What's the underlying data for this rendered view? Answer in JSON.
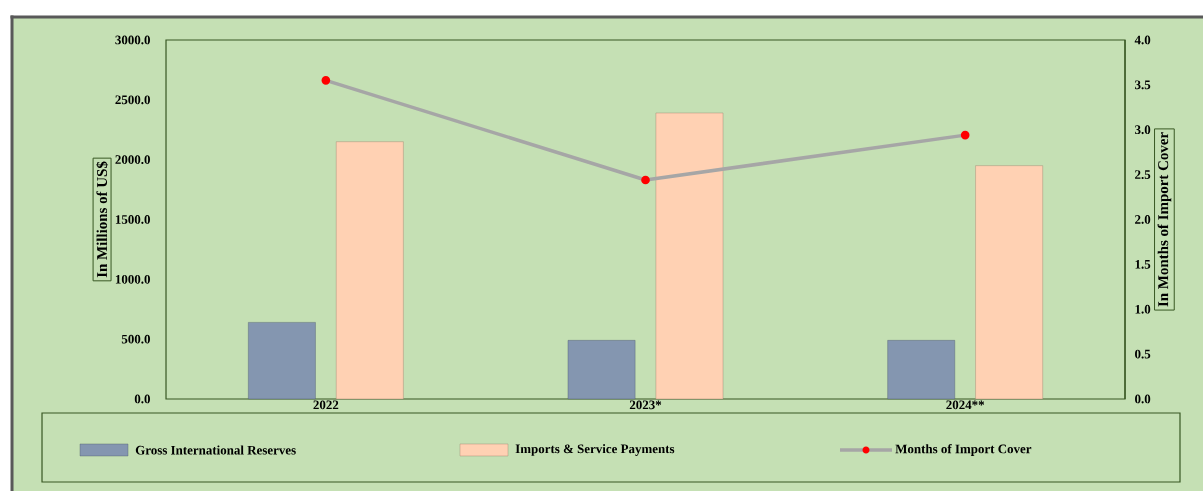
{
  "chart_data": {
    "type": "bar",
    "ylabel": "In Millions of US$",
    "y2label": "In Months of Import Cover",
    "categories": [
      "2022",
      "2023*",
      "2024**"
    ],
    "series": [
      {
        "name": "Gross International Reserves",
        "color": "#8496b0",
        "values": [
          640,
          490,
          490
        ]
      },
      {
        "name": "Imports & Service Payments",
        "color": "#ffd1b3",
        "values": [
          2150,
          2390,
          1950
        ]
      },
      {
        "name": "Months of Import Cover",
        "type": "line",
        "axis": "y2",
        "color": "#a6a6a6",
        "marker": "circle",
        "values": [
          3.55,
          2.44,
          2.94
        ]
      }
    ],
    "ylim": [
      0,
      3000
    ],
    "yticks": [
      {
        "value": 0,
        "label": "0.0"
      },
      {
        "value": 500,
        "label": "500.0"
      },
      {
        "value": 1000,
        "label": "1000.0"
      },
      {
        "value": 1500,
        "label": "1500.0"
      },
      {
        "value": 2000,
        "label": "2000.0"
      },
      {
        "value": 2500,
        "label": "2500.0"
      },
      {
        "value": 3000,
        "label": "3000.0"
      }
    ],
    "y2lim": [
      0,
      4
    ],
    "y2ticks": [
      {
        "value": 0,
        "label": "0.0"
      },
      {
        "value": 0.5,
        "label": "0.5"
      },
      {
        "value": 1,
        "label": "1.0"
      },
      {
        "value": 1.5,
        "label": "1.5"
      },
      {
        "value": 2,
        "label": "2.0"
      },
      {
        "value": 2.5,
        "label": "2.5"
      },
      {
        "value": 3,
        "label": "3.0"
      },
      {
        "value": 3.5,
        "label": "3.5"
      },
      {
        "value": 4,
        "label": "4.0"
      }
    ],
    "grid": false,
    "legend": "bottom"
  }
}
